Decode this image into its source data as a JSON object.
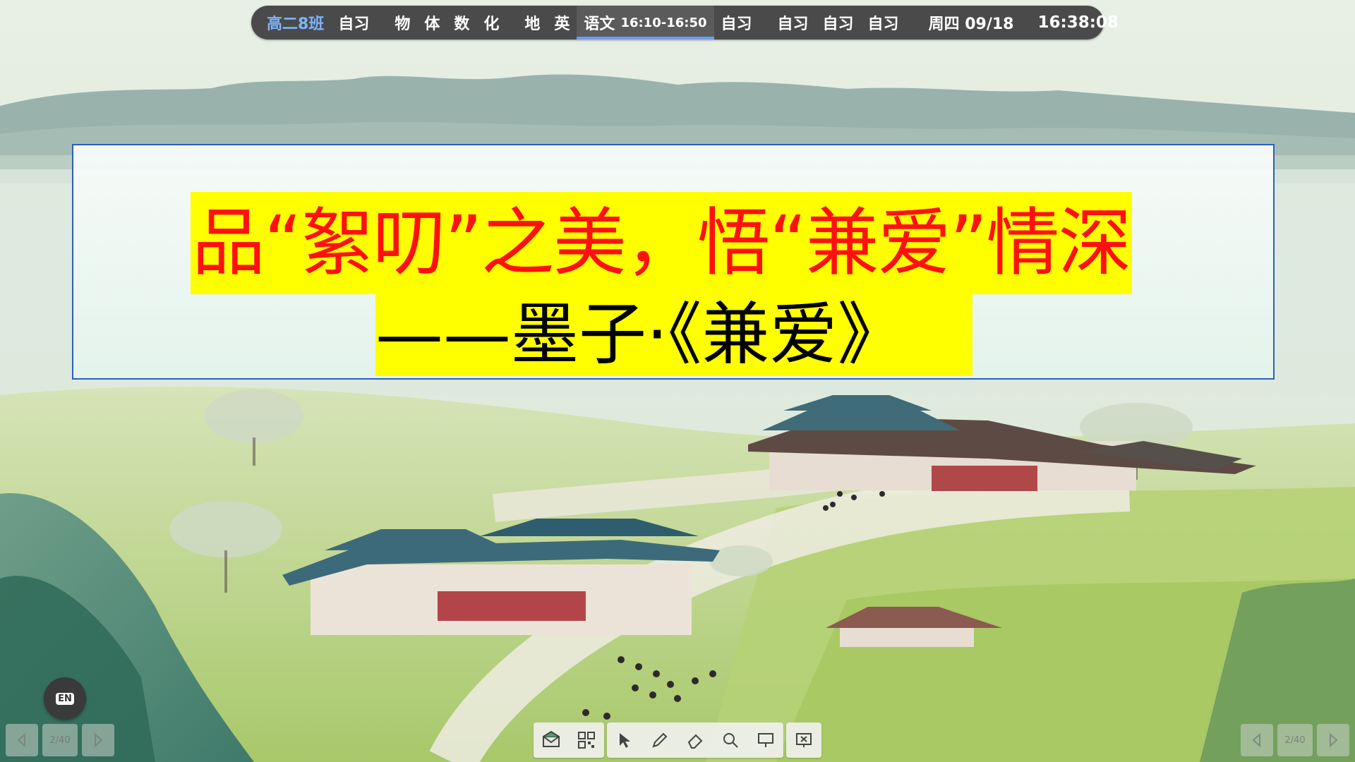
{
  "topbar": {
    "class_name": "高二8班",
    "items": [
      "自习",
      "物",
      "体",
      "数",
      "化",
      "地",
      "英"
    ],
    "current_subject": "语文",
    "current_time": "16:10-16:50",
    "after_items": [
      "自习",
      "自习",
      "自习",
      "自习"
    ],
    "date": "周四 09/18",
    "clock": "16:38:08"
  },
  "slide": {
    "title": "品“絮叨”之美，悟“兼爱”情深",
    "subtitle": "——墨子·《兼爱》"
  },
  "nav": {
    "page_left": "2/40",
    "page_right": "2/40"
  },
  "input_method": {
    "label": "EN"
  },
  "colors": {
    "title_text": "#ff1010",
    "highlight": "#ffff00",
    "topbar_bg": "#4a4a4a",
    "class_label": "#7db4ff",
    "card_border": "#2a5fbf"
  }
}
